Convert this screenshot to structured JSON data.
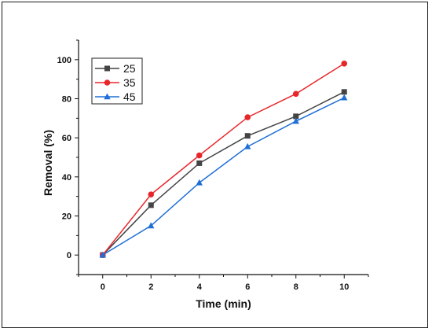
{
  "chart_data": {
    "type": "line",
    "title": "",
    "xlabel": "Time (min)",
    "ylabel": "Removal (%)",
    "x": [
      0,
      2,
      4,
      6,
      8,
      10
    ],
    "xlim": [
      -1,
      11
    ],
    "ylim": [
      -10,
      110
    ],
    "xticks": [
      0,
      2,
      4,
      6,
      8,
      10
    ],
    "yticks": [
      0,
      20,
      40,
      60,
      80,
      100
    ],
    "grid": false,
    "legend_position": "top-left",
    "series": [
      {
        "name": "25",
        "color": "#444444",
        "marker": "square",
        "values": [
          0,
          25.5,
          47,
          61,
          71,
          83.5
        ]
      },
      {
        "name": "35",
        "color": "#e8262a",
        "marker": "circle",
        "values": [
          0,
          31,
          51,
          70.5,
          82.5,
          98
        ]
      },
      {
        "name": "45",
        "color": "#1f6fd6",
        "marker": "triangle",
        "values": [
          0,
          15,
          37,
          55.5,
          68.5,
          80.5
        ]
      }
    ]
  }
}
